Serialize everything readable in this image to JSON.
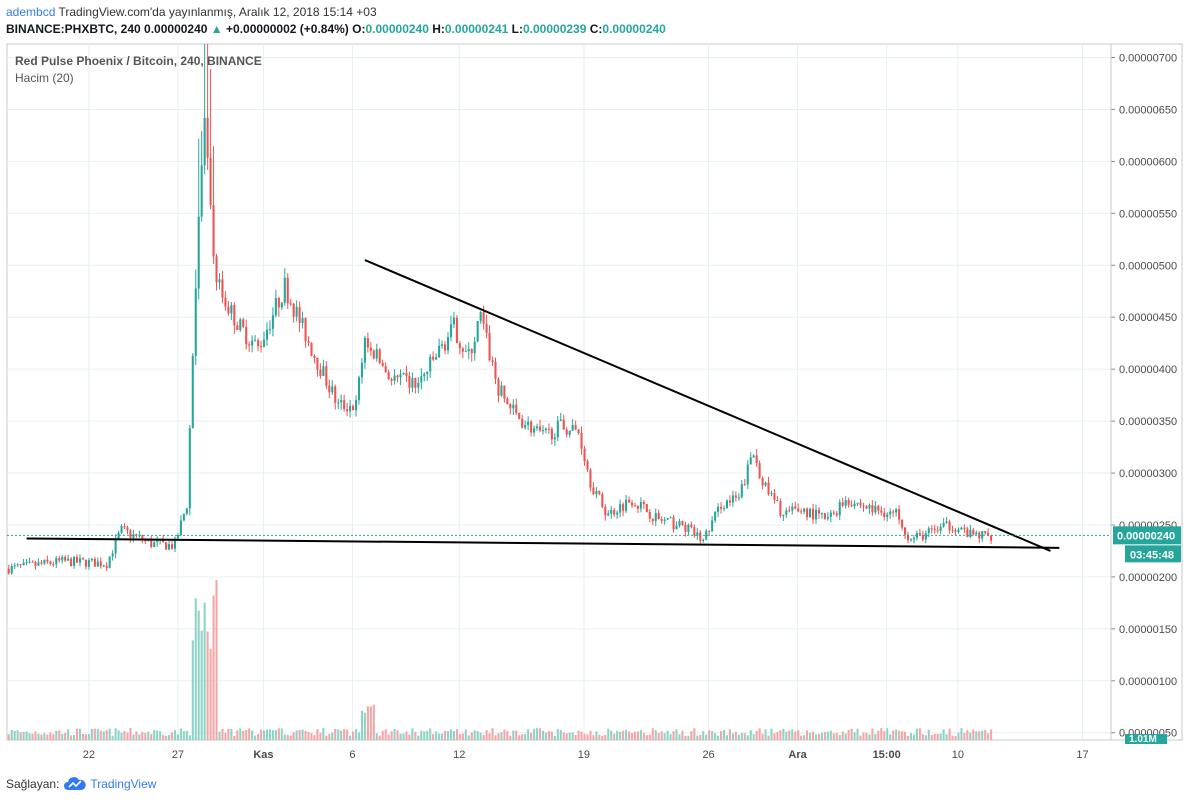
{
  "header": {
    "user": "adembcd",
    "published": "TradingView.com'da yayınlanmış, Aralık 12, 2018 15:14 +03",
    "symbol_interval": "BINANCE:PHXBTC, 240",
    "last": "0.00000240",
    "change_arrow": "▲",
    "change": "+0.00000002 (+0.84%)",
    "o_label": "O:",
    "o": "0.00000240",
    "h_label": "H:",
    "h": "0.00000241",
    "l_label": "L:",
    "l": "0.00000239",
    "c_label": "C:",
    "c": "0.00000240"
  },
  "legend": {
    "title": "Red Pulse Phoenix / Bitcoin, 240, BINANCE",
    "volume": "Hacim (20)"
  },
  "footer": {
    "provider_label": "Sağlayan:",
    "brand": "TradingView"
  },
  "colors": {
    "up": "#26a69a",
    "down": "#ef5350",
    "grid": "#e6f0f3",
    "axis_text": "#4a4a4a",
    "price_tag": "#26a69a",
    "trendline": "#000000"
  },
  "chart_data": {
    "type": "candlestick",
    "title": "Red Pulse Phoenix / Bitcoin, 240, BINANCE",
    "ylim": [
      4.3e-07,
      7.13e-06
    ],
    "y_ticks": [
      "0.00000700",
      "0.00000650",
      "0.00000600",
      "0.00000550",
      "0.00000500",
      "0.00000450",
      "0.00000400",
      "0.00000350",
      "0.00000300",
      "0.00000250",
      "0.00000200",
      "0.00000150",
      "0.00000100",
      "0.00000050"
    ],
    "x_ticks": [
      {
        "label": "22",
        "t": 3.5
      },
      {
        "label": "27",
        "t": 8.5
      },
      {
        "label": "Kas",
        "t": 13.3
      },
      {
        "label": "6",
        "t": 18.3
      },
      {
        "label": "12",
        "t": 24.3
      },
      {
        "label": "19",
        "t": 31.3
      },
      {
        "label": "26",
        "t": 38.3
      },
      {
        "label": "Ara",
        "t": 43.3
      },
      {
        "label": "15:00",
        "t": 48.3
      },
      {
        "label": "10",
        "t": 52.3
      },
      {
        "label": "17",
        "t": 59.3
      }
    ],
    "x_range": [
      -1.1,
      60.9
    ],
    "grid": true,
    "current_price": {
      "value": "0.00000240",
      "y": 2.4e-06
    },
    "countdown": "03:45:48",
    "volume_axis_label": "1.01M",
    "volume_series": "Hacim (20)",
    "key_points": [
      {
        "t": -1.0,
        "close": 2.08e-06
      },
      {
        "t": 2.0,
        "close": 2.15e-06
      },
      {
        "t": 4.5,
        "close": 2.13e-06
      },
      {
        "t": 5.3,
        "close": 2.45e-06
      },
      {
        "t": 7.0,
        "close": 2.32e-06
      },
      {
        "t": 8.3,
        "close": 2.3e-06
      },
      {
        "t": 9.0,
        "close": 2.7e-06
      },
      {
        "t": 9.6,
        "close": 5.3e-06
      },
      {
        "t": 10.0,
        "close": 6.4e-06
      },
      {
        "t": 10.5,
        "close": 5e-06
      },
      {
        "t": 11.0,
        "close": 4.7e-06
      },
      {
        "t": 12.0,
        "close": 4.4e-06
      },
      {
        "t": 13.0,
        "close": 4.2e-06
      },
      {
        "t": 14.5,
        "close": 4.8e-06
      },
      {
        "t": 16.0,
        "close": 4.2e-06
      },
      {
        "t": 17.5,
        "close": 3.65e-06
      },
      {
        "t": 18.5,
        "close": 3.65e-06
      },
      {
        "t": 19.0,
        "close": 4.3e-06
      },
      {
        "t": 20.5,
        "close": 3.9e-06
      },
      {
        "t": 22.0,
        "close": 3.85e-06
      },
      {
        "t": 24.0,
        "close": 4.4e-06
      },
      {
        "t": 24.8,
        "close": 4.1e-06
      },
      {
        "t": 25.5,
        "close": 4.5e-06
      },
      {
        "t": 26.5,
        "close": 3.8e-06
      },
      {
        "t": 27.5,
        "close": 3.55e-06
      },
      {
        "t": 29.0,
        "close": 3.35e-06
      },
      {
        "t": 30.0,
        "close": 3.45e-06
      },
      {
        "t": 31.0,
        "close": 3.4e-06
      },
      {
        "t": 31.7,
        "close": 2.9e-06
      },
      {
        "t": 32.6,
        "close": 2.6e-06
      },
      {
        "t": 34.0,
        "close": 2.75e-06
      },
      {
        "t": 35.5,
        "close": 2.55e-06
      },
      {
        "t": 37.0,
        "close": 2.48e-06
      },
      {
        "t": 38.0,
        "close": 2.35e-06
      },
      {
        "t": 39.0,
        "close": 2.7e-06
      },
      {
        "t": 40.0,
        "close": 2.75e-06
      },
      {
        "t": 40.8,
        "close": 3.2e-06
      },
      {
        "t": 41.5,
        "close": 2.85e-06
      },
      {
        "t": 42.5,
        "close": 2.6e-06
      },
      {
        "t": 43.5,
        "close": 2.65e-06
      },
      {
        "t": 45.0,
        "close": 2.55e-06
      },
      {
        "t": 46.0,
        "close": 2.75e-06
      },
      {
        "t": 47.5,
        "close": 2.65e-06
      },
      {
        "t": 49.0,
        "close": 2.6e-06
      },
      {
        "t": 49.6,
        "close": 2.35e-06
      },
      {
        "t": 51.0,
        "close": 2.45e-06
      },
      {
        "t": 52.0,
        "close": 2.5e-06
      },
      {
        "t": 53.0,
        "close": 2.4e-06
      },
      {
        "t": 54.2,
        "close": 2.4e-06
      }
    ],
    "trendlines": [
      {
        "name": "descending",
        "start": {
          "t": 19.0,
          "y": 5.05e-06
        },
        "end": {
          "t": 57.5,
          "y": 2.25e-06
        }
      },
      {
        "name": "support",
        "start": {
          "t": 0.0,
          "y": 2.37e-06
        },
        "end": {
          "t": 58.0,
          "y": 2.28e-06
        }
      }
    ]
  }
}
